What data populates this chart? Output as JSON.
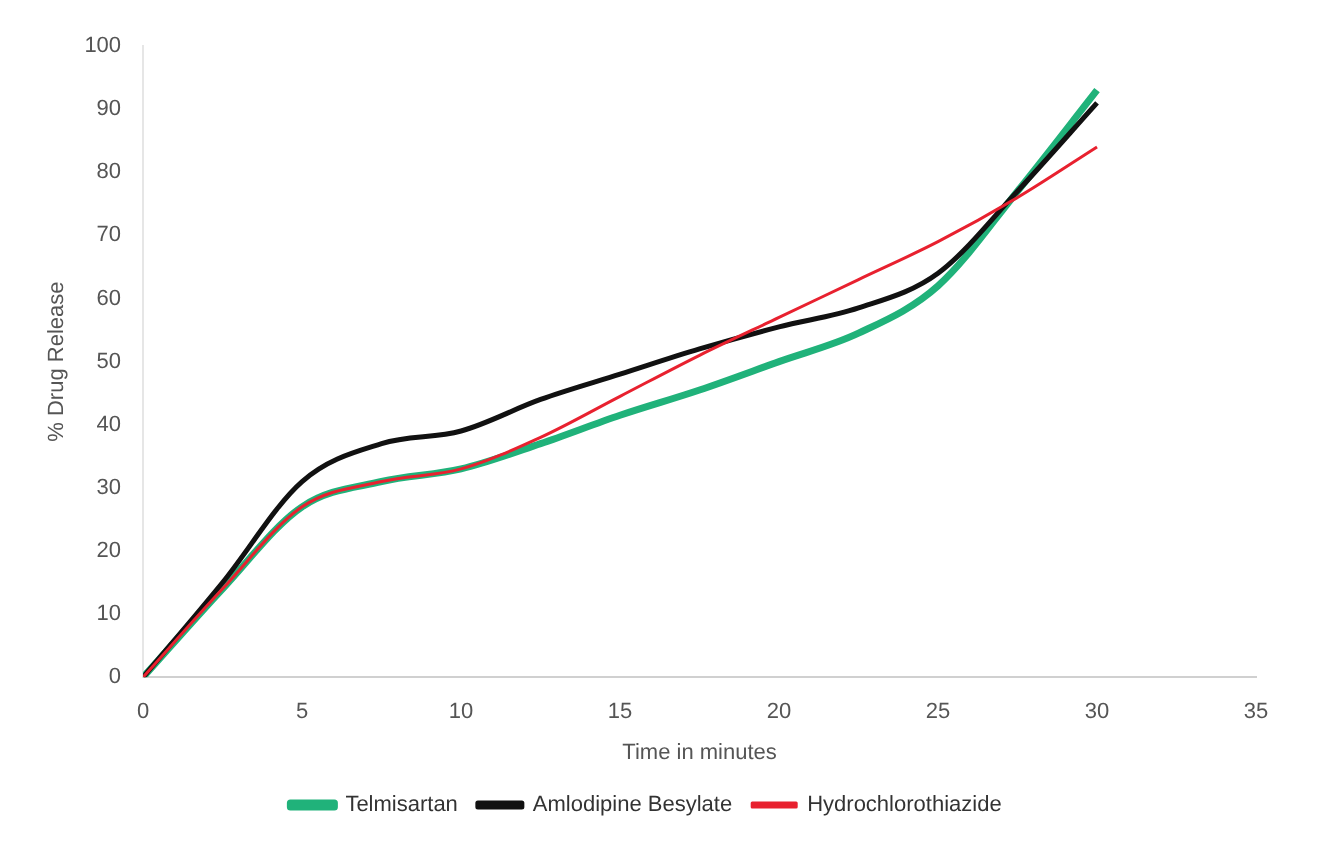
{
  "chart_data": {
    "type": "line",
    "xlabel": "Time in minutes",
    "ylabel": "% Drug Release",
    "x": [
      0,
      2.5,
      5,
      7.5,
      10,
      12.5,
      15,
      17.5,
      20,
      22.5,
      25,
      27.5,
      30
    ],
    "series": [
      {
        "name": "Telmisartan",
        "color": "#20b27a",
        "values": [
          0,
          14,
          27,
          31,
          33,
          37,
          41.5,
          45.5,
          50,
          54.5,
          62,
          77,
          93
        ]
      },
      {
        "name": "Amlodipine Besylate",
        "color": "#111111",
        "values": [
          0,
          15,
          31,
          37,
          39,
          44,
          48,
          52,
          55.5,
          58.5,
          64,
          77,
          91
        ]
      },
      {
        "name": "Hydrochlorothiazide",
        "color": "#e8212f",
        "values": [
          0,
          14,
          27,
          31,
          33,
          38,
          44.5,
          51,
          57,
          63,
          69,
          76,
          84
        ]
      }
    ],
    "xlim": [
      0,
      35
    ],
    "xticks": [
      0,
      5,
      10,
      15,
      20,
      25,
      30,
      35
    ],
    "ylim": [
      0,
      100
    ],
    "yticks": [
      0,
      10,
      20,
      30,
      40,
      50,
      60,
      70,
      80,
      90,
      100
    ],
    "grid": false,
    "legend": "bottom",
    "marker": "none",
    "line_style": "solid"
  }
}
